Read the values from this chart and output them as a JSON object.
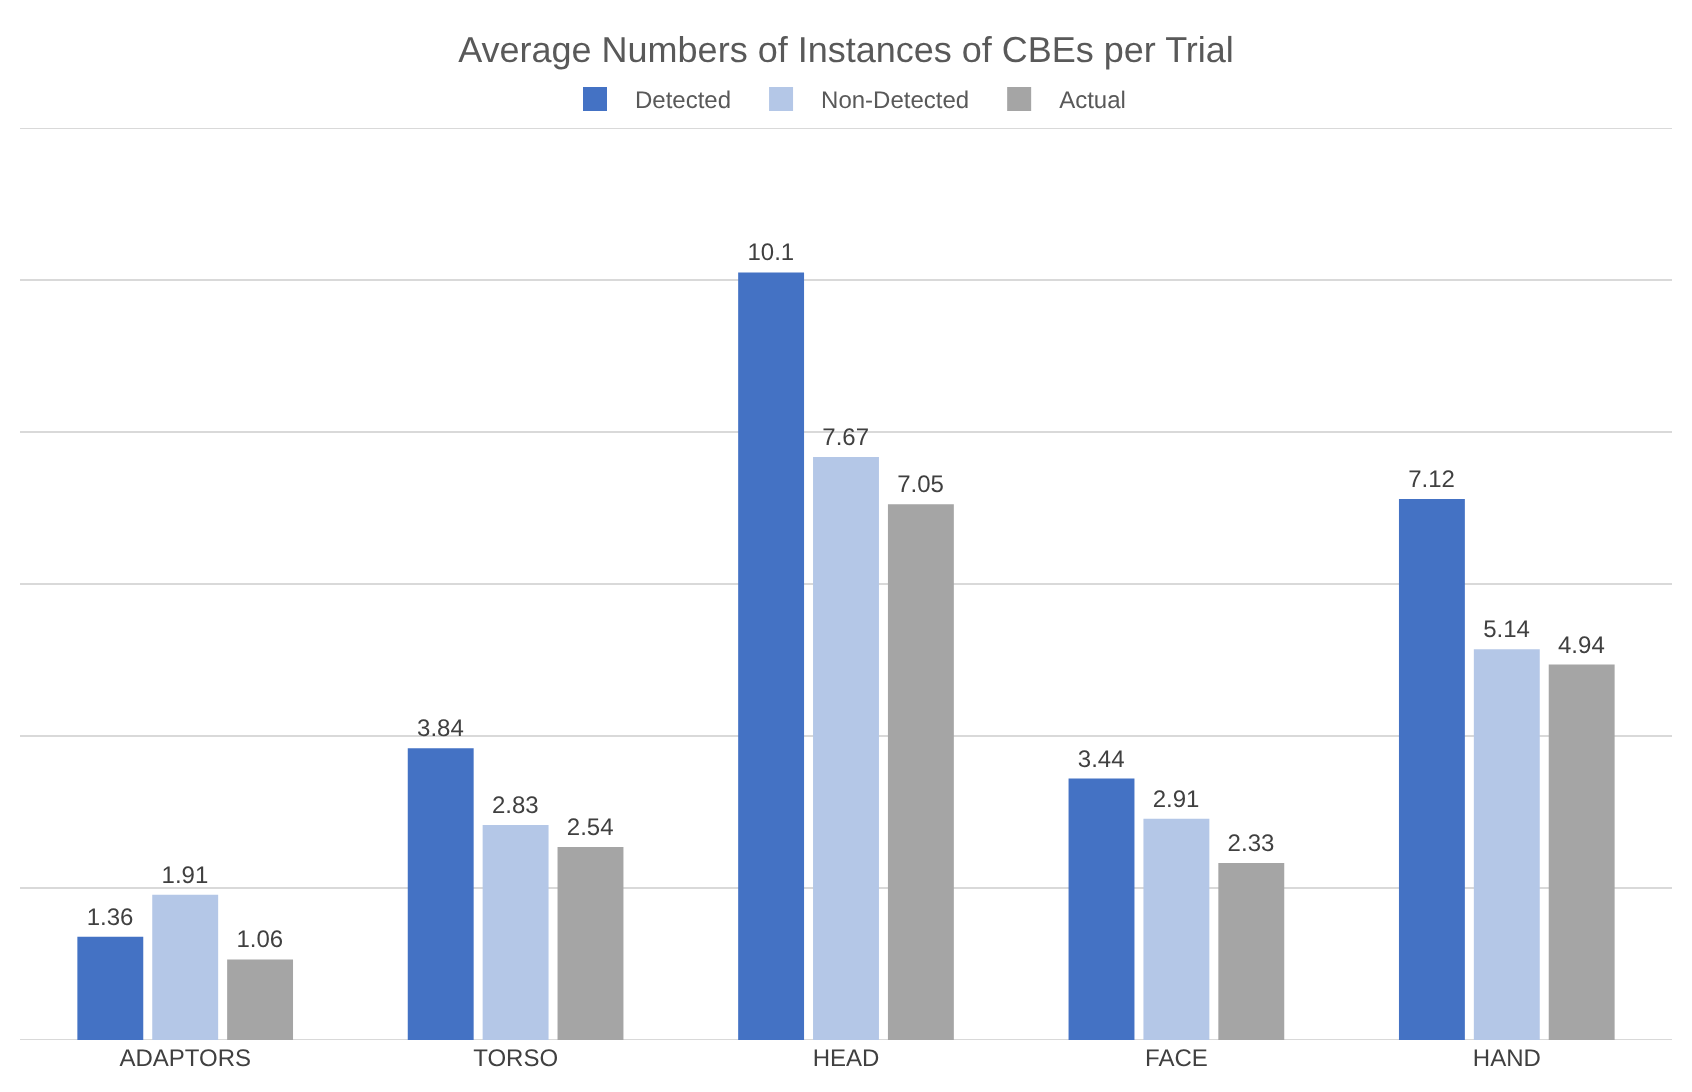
{
  "chart_data": {
    "type": "bar",
    "title": "Average Numbers of Instances of CBEs per Trial",
    "categories": [
      "ADAPTORS",
      "TORSO",
      "HEAD",
      "FACE",
      "HAND"
    ],
    "series": [
      {
        "name": "Detected",
        "color": "#4472c4",
        "values": [
          1.36,
          3.84,
          10.1,
          3.44,
          7.12
        ]
      },
      {
        "name": "Non-Detected",
        "color": "#b4c7e7",
        "values": [
          1.91,
          2.83,
          7.67,
          2.91,
          5.14
        ]
      },
      {
        "name": "Actual",
        "color": "#a5a5a5",
        "values": [
          1.06,
          2.54,
          7.05,
          2.33,
          4.94
        ]
      }
    ],
    "ylim": [
      0,
      12
    ],
    "yticks": [
      {
        "value": 0,
        "label": null
      },
      {
        "value": 2,
        "label": null
      },
      {
        "value": 4,
        "label": null
      },
      {
        "value": 6,
        "label": null
      },
      {
        "value": 8,
        "label": null
      },
      {
        "value": 10,
        "label": null
      },
      {
        "value": 12,
        "label": null
      }
    ],
    "tick_labels": "x",
    "grid": "y",
    "legend": "top",
    "data_labels": true
  }
}
